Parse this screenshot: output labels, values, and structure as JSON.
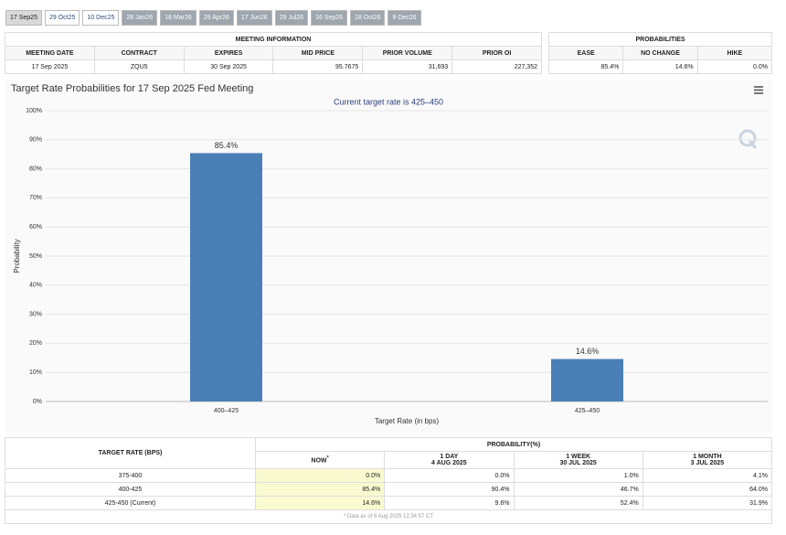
{
  "tabs": [
    "17 Sep25",
    "29 Oct25",
    "10 Dec25",
    "28 Jan26",
    "18 Mar26",
    "29 Apr26",
    "17 Jun26",
    "29 Jul26",
    "16 Sep26",
    "28 Oct26",
    "9 Dec26"
  ],
  "meeting_info": {
    "title": "MEETING INFORMATION",
    "headers": [
      "MEETING DATE",
      "CONTRACT",
      "EXPIRES",
      "MID PRICE",
      "PRIOR VOLUME",
      "PRIOR OI"
    ],
    "row": [
      "17 Sep 2025",
      "ZQU5",
      "30 Sep 2025",
      "95.7675",
      "31,693",
      "227,352"
    ]
  },
  "probabilities": {
    "title": "PROBABILITIES",
    "headers": [
      "EASE",
      "NO CHANGE",
      "HIKE"
    ],
    "row": [
      "85.4%",
      "14.6%",
      "0.0%"
    ]
  },
  "chart_data": {
    "type": "bar",
    "title": "Target Rate Probabilities for 17 Sep 2025 Fed Meeting",
    "subtitle": "Current target rate is 425–450",
    "categories": [
      "400–425",
      "425–450"
    ],
    "values": [
      85.4,
      14.6
    ],
    "value_labels": [
      "85.4%",
      "14.6%"
    ],
    "color": "#4a7fb5",
    "x_label": "Target Rate (in bps)",
    "y_label": "Probability",
    "ylim": [
      0,
      100
    ],
    "yticks": [
      {
        "value": 0,
        "label": "0%"
      },
      {
        "value": 10,
        "label": "10%"
      },
      {
        "value": 20,
        "label": "20%"
      },
      {
        "value": 30,
        "label": "30%"
      },
      {
        "value": 40,
        "label": "40%"
      },
      {
        "value": 50,
        "label": "50%"
      },
      {
        "value": 60,
        "label": "60%"
      },
      {
        "value": 70,
        "label": "70%"
      },
      {
        "value": 80,
        "label": "80%"
      },
      {
        "value": 90,
        "label": "90%"
      },
      {
        "value": 100,
        "label": "100%"
      }
    ],
    "grid": true
  },
  "history": {
    "rate_header": "TARGET RATE (BPS)",
    "title": "PROBABILITY(%)",
    "columns": [
      {
        "label": "NOW",
        "note": "*"
      },
      {
        "label": "1 DAY",
        "date": "4 AUG 2025"
      },
      {
        "label": "1 WEEK",
        "date": "30 JUL 2025"
      },
      {
        "label": "1 MONTH",
        "date": "3 JUL 2025"
      }
    ],
    "rows": [
      [
        "375-400",
        "0.0%",
        "0.0%",
        "1.0%",
        "4.1%"
      ],
      [
        "400-425",
        "85.4%",
        "90.4%",
        "46.7%",
        "64.0%"
      ],
      [
        "425-450 (Current)",
        "14.6%",
        "9.6%",
        "52.4%",
        "31.9%"
      ]
    ],
    "footnote": "* Data as of 6 Aug 2025 12:34:57 CT"
  }
}
